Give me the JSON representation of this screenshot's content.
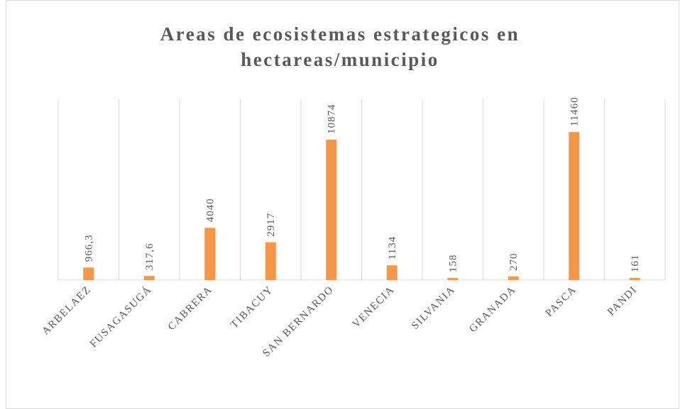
{
  "chart_data": {
    "type": "bar",
    "title": "Areas de ecosistemas estrategicos en hectareas/municipio",
    "categories": [
      "ARBELAEZ",
      "FUSAGASUGÁ",
      "CABRERA",
      "TIBACUY",
      "SAN BERNARDO",
      "VENECIA",
      "SILVANIA",
      "GRANADA",
      "PASCA",
      "PANDI"
    ],
    "values": [
      966.3,
      317.6,
      4040,
      2917,
      10874,
      1134,
      158,
      270,
      11460,
      161
    ],
    "value_labels": [
      "966,3",
      "317,6",
      "4040",
      "2917",
      "10874",
      "1134",
      "158",
      "270",
      "11460",
      "161"
    ],
    "color": "#f79646",
    "ylim": [
      0,
      14000
    ]
  }
}
